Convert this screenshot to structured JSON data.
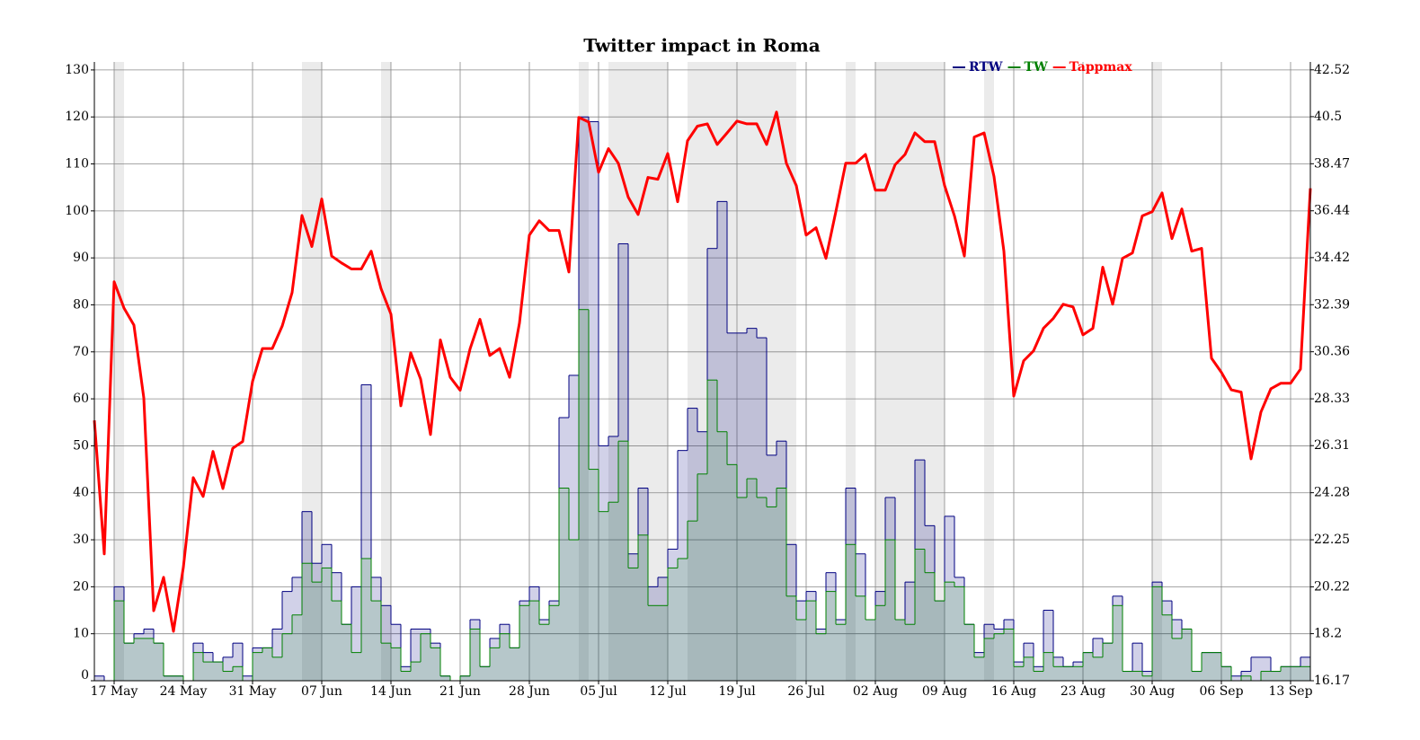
{
  "chart_data": {
    "type": "step-line",
    "title": "Twitter impact in Roma",
    "xlim": [
      0,
      123
    ],
    "xticks": [
      {
        "value": 2,
        "label": "17 May"
      },
      {
        "value": 9,
        "label": "24 May"
      },
      {
        "value": 16,
        "label": "31 May"
      },
      {
        "value": 23,
        "label": "07 Jun"
      },
      {
        "value": 30,
        "label": "14 Jun"
      },
      {
        "value": 37,
        "label": "21 Jun"
      },
      {
        "value": 44,
        "label": "28 Jun"
      },
      {
        "value": 51,
        "label": "05 Jul"
      },
      {
        "value": 58,
        "label": "12 Jul"
      },
      {
        "value": 65,
        "label": "19 Jul"
      },
      {
        "value": 72,
        "label": "26 Jul"
      },
      {
        "value": 79,
        "label": "02 Aug"
      },
      {
        "value": 86,
        "label": "09 Aug"
      },
      {
        "value": 93,
        "label": "16 Aug"
      },
      {
        "value": 100,
        "label": "23 Aug"
      },
      {
        "value": 107,
        "label": "30 Aug"
      },
      {
        "value": 114,
        "label": "06 Sep"
      },
      {
        "value": 121,
        "label": "13 Sep"
      }
    ],
    "ylim": [
      0,
      131.7
    ],
    "yticks": [
      0,
      10,
      20,
      30,
      40,
      50,
      60,
      70,
      80,
      90,
      100,
      110,
      120,
      130
    ],
    "y2lim": [
      16.17,
      42.86
    ],
    "y2ticks": [
      16.17,
      18.2,
      20.22,
      22.25,
      24.28,
      26.31,
      28.33,
      30.36,
      32.39,
      34.42,
      36.44,
      38.47,
      40.5,
      42.52
    ],
    "grid": true,
    "legend": "upper right",
    "shaded_spans": [
      [
        2,
        3
      ],
      [
        21,
        23
      ],
      [
        29,
        30
      ],
      [
        49,
        50
      ],
      [
        52,
        58
      ],
      [
        60,
        71
      ],
      [
        76,
        77
      ],
      [
        79,
        86
      ],
      [
        90,
        91
      ],
      [
        107,
        108
      ]
    ],
    "series": [
      {
        "name": "RTW",
        "color": "#000080",
        "style": "step",
        "x": [
          0,
          1,
          2,
          3,
          4,
          5,
          6,
          7,
          8,
          9,
          10,
          11,
          12,
          13,
          14,
          15,
          16,
          17,
          18,
          19,
          20,
          21,
          22,
          23,
          24,
          25,
          26,
          27,
          28,
          29,
          30,
          31,
          32,
          33,
          34,
          35,
          36,
          37,
          38,
          39,
          40,
          41,
          42,
          43,
          44,
          45,
          46,
          47,
          48,
          49,
          50,
          51,
          52,
          53,
          54,
          55,
          56,
          57,
          58,
          59,
          60,
          61,
          62,
          63,
          64,
          65,
          66,
          67,
          68,
          69,
          70,
          71,
          72,
          73,
          74,
          75,
          76,
          77,
          78,
          79,
          80,
          81,
          82,
          83,
          84,
          85,
          86,
          87,
          88,
          89,
          90,
          91,
          92,
          93,
          94,
          95,
          96,
          97,
          98,
          99,
          100,
          101,
          102,
          103,
          104,
          105,
          106,
          107,
          108,
          109,
          110,
          111,
          112,
          113,
          114,
          115,
          116,
          117,
          118,
          119,
          120,
          121,
          122
        ],
        "values": [
          1,
          0,
          20,
          8,
          10,
          11,
          8,
          1,
          1,
          0,
          8,
          6,
          4,
          5,
          8,
          1,
          7,
          7,
          11,
          19,
          22,
          36,
          25,
          29,
          23,
          12,
          20,
          63,
          22,
          16,
          12,
          3,
          11,
          11,
          8,
          1,
          0,
          1,
          13,
          3,
          9,
          12,
          7,
          17,
          20,
          13,
          17,
          56,
          65,
          120,
          119,
          50,
          52,
          93,
          27,
          41,
          20,
          22,
          28,
          49,
          58,
          53,
          92,
          102,
          74,
          74,
          75,
          73,
          48,
          51,
          29,
          17,
          19,
          11,
          23,
          13,
          41,
          27,
          13,
          19,
          39,
          13,
          21,
          47,
          33,
          17,
          35,
          22,
          12,
          6,
          12,
          11,
          13,
          4,
          8,
          3,
          15,
          5,
          3,
          4,
          6,
          9,
          8,
          18,
          2,
          8,
          2,
          21,
          17,
          13,
          11,
          2,
          6,
          6,
          3,
          1,
          2,
          5,
          5,
          2,
          3,
          3,
          5
        ]
      },
      {
        "name": "TW",
        "color": "#008000",
        "style": "step",
        "x": [
          0,
          1,
          2,
          3,
          4,
          5,
          6,
          7,
          8,
          9,
          10,
          11,
          12,
          13,
          14,
          15,
          16,
          17,
          18,
          19,
          20,
          21,
          22,
          23,
          24,
          25,
          26,
          27,
          28,
          29,
          30,
          31,
          32,
          33,
          34,
          35,
          36,
          37,
          38,
          39,
          40,
          41,
          42,
          43,
          44,
          45,
          46,
          47,
          48,
          49,
          50,
          51,
          52,
          53,
          54,
          55,
          56,
          57,
          58,
          59,
          60,
          61,
          62,
          63,
          64,
          65,
          66,
          67,
          68,
          69,
          70,
          71,
          72,
          73,
          74,
          75,
          76,
          77,
          78,
          79,
          80,
          81,
          82,
          83,
          84,
          85,
          86,
          87,
          88,
          89,
          90,
          91,
          92,
          93,
          94,
          95,
          96,
          97,
          98,
          99,
          100,
          101,
          102,
          103,
          104,
          105,
          106,
          107,
          108,
          109,
          110,
          111,
          112,
          113,
          114,
          115,
          116,
          117,
          118,
          119,
          120,
          121,
          122
        ],
        "values": [
          0,
          0,
          17,
          8,
          9,
          9,
          8,
          1,
          1,
          0,
          6,
          4,
          4,
          2,
          3,
          0,
          6,
          7,
          5,
          10,
          14,
          25,
          21,
          24,
          17,
          12,
          6,
          26,
          17,
          8,
          7,
          2,
          4,
          10,
          7,
          1,
          0,
          1,
          11,
          3,
          7,
          10,
          7,
          16,
          17,
          12,
          16,
          41,
          30,
          79,
          45,
          36,
          38,
          51,
          24,
          31,
          16,
          16,
          24,
          26,
          34,
          44,
          64,
          53,
          46,
          39,
          43,
          39,
          37,
          41,
          18,
          13,
          17,
          10,
          19,
          12,
          29,
          18,
          13,
          16,
          30,
          13,
          12,
          28,
          23,
          17,
          21,
          20,
          12,
          5,
          9,
          10,
          11,
          3,
          5,
          2,
          6,
          3,
          3,
          3,
          6,
          5,
          8,
          16,
          2,
          2,
          1,
          20,
          14,
          9,
          11,
          2,
          6,
          6,
          3,
          0,
          1,
          0,
          2,
          2,
          3,
          3,
          3
        ]
      },
      {
        "name": "Tappmax",
        "color": "#ff0000",
        "style": "line",
        "axis": "y2",
        "x": [
          0,
          1,
          2,
          3,
          4,
          5,
          6,
          7,
          8,
          9,
          10,
          11,
          12,
          13,
          14,
          15,
          16,
          17,
          18,
          19,
          20,
          21,
          22,
          23,
          24,
          25,
          26,
          27,
          28,
          29,
          30,
          31,
          32,
          33,
          34,
          35,
          36,
          37,
          38,
          39,
          40,
          41,
          42,
          43,
          44,
          45,
          46,
          47,
          48,
          49,
          50,
          51,
          52,
          53,
          54,
          55,
          56,
          57,
          58,
          59,
          60,
          61,
          62,
          63,
          64,
          65,
          66,
          67,
          68,
          69,
          70,
          71,
          72,
          73,
          74,
          75,
          76,
          77,
          78,
          79,
          80,
          81,
          82,
          83,
          84,
          85,
          86,
          87,
          88,
          89,
          90,
          91,
          92,
          93,
          94,
          95,
          96,
          97,
          98,
          99,
          100,
          101,
          102,
          103,
          104,
          105,
          106,
          107,
          108,
          109,
          110,
          111,
          112,
          113,
          114,
          115,
          116,
          117,
          118,
          119,
          120,
          121,
          122,
          123
        ],
        "values": [
          27.4,
          21.64,
          33.38,
          32.24,
          31.51,
          28.37,
          19.19,
          20.63,
          18.3,
          21.06,
          24.93,
          24.12,
          26.06,
          24.46,
          26.2,
          26.49,
          29.08,
          30.5,
          30.5,
          31.47,
          32.91,
          36.24,
          34.9,
          36.95,
          34.49,
          34.19,
          33.93,
          33.93,
          34.7,
          33.08,
          31.98,
          28.03,
          30.32,
          29.18,
          26.79,
          30.87,
          29.26,
          28.7,
          30.48,
          31.76,
          30.2,
          30.5,
          29.26,
          31.6,
          35.39,
          36.01,
          35.59,
          35.59,
          33.8,
          40.47,
          40.27,
          38.1,
          39.12,
          38.49,
          37.03,
          36.28,
          37.88,
          37.8,
          38.91,
          36.83,
          39.46,
          40.09,
          40.19,
          39.3,
          39.8,
          40.31,
          40.19,
          40.19,
          39.3,
          40.7,
          38.49,
          37.53,
          35.39,
          35.71,
          34.39,
          36.4,
          38.49,
          38.49,
          38.87,
          37.33,
          37.33,
          38.43,
          38.87,
          39.8,
          39.42,
          39.42,
          37.53,
          36.22,
          34.49,
          39.62,
          39.8,
          37.92,
          34.7,
          28.45,
          29.97,
          30.4,
          31.37,
          31.8,
          32.41,
          32.29,
          31.09,
          31.37,
          34.01,
          32.41,
          34.39,
          34.62,
          36.22,
          36.4,
          37.21,
          35.24,
          36.52,
          34.7,
          34.82,
          30.08,
          29.47,
          28.72,
          28.62,
          25.74,
          27.76,
          28.76,
          29.0,
          29.0,
          29.61,
          37.41
        ]
      }
    ]
  }
}
